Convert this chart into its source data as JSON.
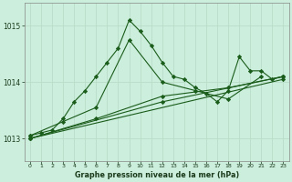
{
  "xlabel": "Graphe pression niveau de la mer (hPa)",
  "background_color": "#cceedd",
  "grid_color": "#b8ddc8",
  "line_color": "#1a5c1a",
  "xlim": [
    -0.5,
    23.5
  ],
  "ylim": [
    1012.6,
    1015.4
  ],
  "yticks": [
    1013,
    1014,
    1015
  ],
  "xticks": [
    0,
    1,
    2,
    3,
    4,
    5,
    6,
    7,
    8,
    9,
    10,
    11,
    12,
    13,
    14,
    15,
    16,
    17,
    18,
    19,
    20,
    21,
    22,
    23
  ],
  "series1": {
    "x": [
      0,
      1,
      2,
      3,
      4,
      5,
      6,
      7,
      8,
      9,
      10,
      11,
      12,
      13,
      14,
      15,
      16,
      17,
      18,
      19,
      20,
      21,
      22,
      23
    ],
    "y": [
      1013.05,
      1013.1,
      1013.15,
      1013.35,
      1013.65,
      1013.85,
      1014.1,
      1014.35,
      1014.6,
      1015.1,
      1014.9,
      1014.65,
      1014.35,
      1014.1,
      1014.05,
      1013.9,
      1013.8,
      1013.65,
      1013.85,
      1014.45,
      1014.2,
      1014.2,
      1014.05,
      1014.1
    ]
  },
  "series2": {
    "x": [
      0,
      3,
      6,
      9,
      12,
      15,
      18,
      21
    ],
    "y": [
      1013.05,
      1013.3,
      1013.55,
      1014.75,
      1014.0,
      1013.85,
      1013.7,
      1014.1
    ]
  },
  "series3": {
    "x": [
      0,
      6,
      12,
      18,
      23
    ],
    "y": [
      1013.0,
      1013.35,
      1013.75,
      1013.9,
      1014.1
    ]
  },
  "series4": {
    "x": [
      0,
      12,
      23
    ],
    "y": [
      1013.0,
      1013.65,
      1014.1
    ]
  },
  "series5": {
    "x": [
      0,
      23
    ],
    "y": [
      1013.0,
      1014.05
    ]
  }
}
